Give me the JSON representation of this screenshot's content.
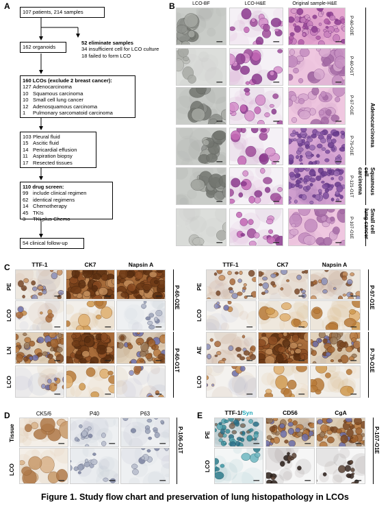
{
  "panels": {
    "a": "A",
    "b": "B",
    "c": "C",
    "d": "D",
    "e": "E"
  },
  "flow": {
    "box1": "107 patients, 214 samples",
    "box2": "162 organoids",
    "side": {
      "title": "52 eliminate samples",
      "lines": [
        "34 insufficient cell for LCO culture",
        "18 failed to form LCO"
      ]
    },
    "box3": {
      "title": "160 LCOs (exclude 2 breast cancer):",
      "items": [
        {
          "n": "127",
          "t": "Adenocarcinoma"
        },
        {
          "n": "10",
          "t": "Squamous carcinoma"
        },
        {
          "n": "10",
          "t": "Small cell lung cancer"
        },
        {
          "n": "12",
          "t": "Adenosquamous carcinoma"
        },
        {
          "n": "1",
          "t": "Pulmonary sarcomatoid carcinoma"
        }
      ]
    },
    "box4": {
      "items": [
        {
          "n": "103",
          "t": "Pleural fluid"
        },
        {
          "n": "15",
          "t": "Ascitic fluid"
        },
        {
          "n": "14",
          "t": "Pericardial effusion"
        },
        {
          "n": "11",
          "t": "Aspiration biopsy"
        },
        {
          "n": "17",
          "t": "Resected tissues"
        }
      ]
    },
    "box5": {
      "title": "110 drug screen:",
      "items": [
        {
          "n": "99",
          "t": "include clinical regimen"
        },
        {
          "n": "62",
          "t": "identical regimens"
        },
        {
          "n": "14",
          "t": "Chemotherapy"
        },
        {
          "n": "45",
          "t": "TKIs"
        },
        {
          "n": "3",
          "t": "TKI plus Chemo"
        }
      ]
    },
    "box6": "54 clinical follow-up"
  },
  "panelB": {
    "headers": [
      "LCO-BF",
      "LCO-H&E",
      "Original sample-H&E"
    ],
    "rows": [
      "P-60-O2E",
      "P-60-O1T",
      "P-97-O1E",
      "P-79-O1E",
      "P-121-O1T",
      "P-107-O1E"
    ],
    "groups": [
      "Adenocarcinoma",
      "Squamous cell carcinoma",
      "Small cell lung cancer"
    ]
  },
  "panelC": {
    "left": {
      "headers": [
        "TTF-1",
        "CK7",
        "Napsin A"
      ],
      "rows": [
        "PE",
        "LCO",
        "LN",
        "LCO"
      ],
      "patients": [
        "P-60-O2E",
        "P-60-O1T"
      ]
    },
    "right": {
      "headers": [
        "TTF-1",
        "CK7",
        "Napsin A"
      ],
      "rows": [
        "PE",
        "LCO",
        "AE",
        "LCO"
      ],
      "patients": [
        "P-97-O1E",
        "P-79-O1E"
      ]
    }
  },
  "panelD": {
    "headers": [
      "CK5/6",
      "P40",
      "P63"
    ],
    "rows": [
      "Tissue",
      "LCO"
    ],
    "patient": "P-106-O1T"
  },
  "panelE": {
    "header1a": "TTF-1/",
    "header1b": "Syn",
    "headers": [
      "CD56",
      "CgA"
    ],
    "rows": [
      "PE",
      "LCO"
    ],
    "patient": "P-107-O1E"
  },
  "caption": "Figure 1. Study flow chart and preservation of lung histopathology in LCOs",
  "colors": {
    "syn": "#21a7b8"
  }
}
